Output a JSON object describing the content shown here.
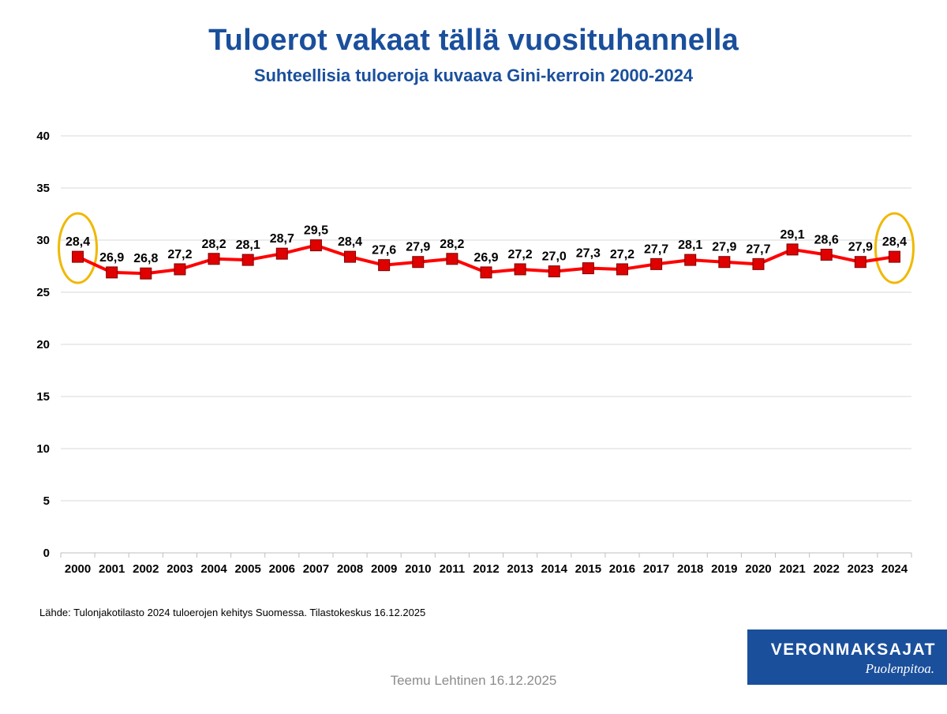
{
  "title": "Tuloerot vakaat tällä vuosituhannella",
  "subtitle": "Suhteellisia tuloeroja kuvaava Gini-kerroin 2000-2024",
  "source": "Lähde: Tulonjakotilasto 2024 tuloerojen kehitys Suomessa. Tilastokeskus 16.12.2025",
  "author": "Teemu Lehtinen  16.12.2025",
  "logo": {
    "name": "VERONMAKSAJAT",
    "slogan": "Puolenpitoa."
  },
  "colors": {
    "title": "#1a4f9c",
    "line": "#ff0000",
    "marker": "#e00000",
    "highlight_ellipse": "#f0b800",
    "logo_background": "#1a4f9c",
    "grid": "#d9d9d9"
  },
  "chart_data": {
    "type": "line",
    "categories": [
      "2000",
      "2001",
      "2002",
      "2003",
      "2004",
      "2005",
      "2006",
      "2007",
      "2008",
      "2009",
      "2010",
      "2011",
      "2012",
      "2013",
      "2014",
      "2015",
      "2016",
      "2017",
      "2018",
      "2019",
      "2020",
      "2021",
      "2022",
      "2023",
      "2024"
    ],
    "series": [
      {
        "values": [
          28.4,
          26.9,
          26.8,
          27.2,
          28.2,
          28.1,
          28.7,
          29.5,
          28.4,
          27.6,
          27.9,
          28.2,
          26.9,
          27.2,
          27.0,
          27.3,
          27.2,
          27.7,
          28.1,
          27.9,
          27.7,
          29.1,
          28.6,
          27.9,
          28.4
        ],
        "data_labels": [
          "28,4",
          "26,9",
          "26,8",
          "27,2",
          "28,2",
          "28,1",
          "28,7",
          "29,5",
          "28,4",
          "27,6",
          "27,9",
          "28,2",
          "26,9",
          "27,2",
          "27,0",
          "27,3",
          "27,2",
          "27,7",
          "28,1",
          "27,9",
          "27,7",
          "29,1",
          "28,6",
          "27,9",
          "28,4"
        ],
        "color": "#ff0000",
        "marker": "square"
      }
    ],
    "ylim": [
      0,
      40
    ],
    "yticks": [
      0,
      5,
      10,
      15,
      20,
      25,
      30,
      35,
      40
    ],
    "xlabel": "",
    "ylabel": "",
    "grid": "horizontal",
    "legend": "none",
    "highlighted_categories": [
      "2000",
      "2024"
    ]
  }
}
